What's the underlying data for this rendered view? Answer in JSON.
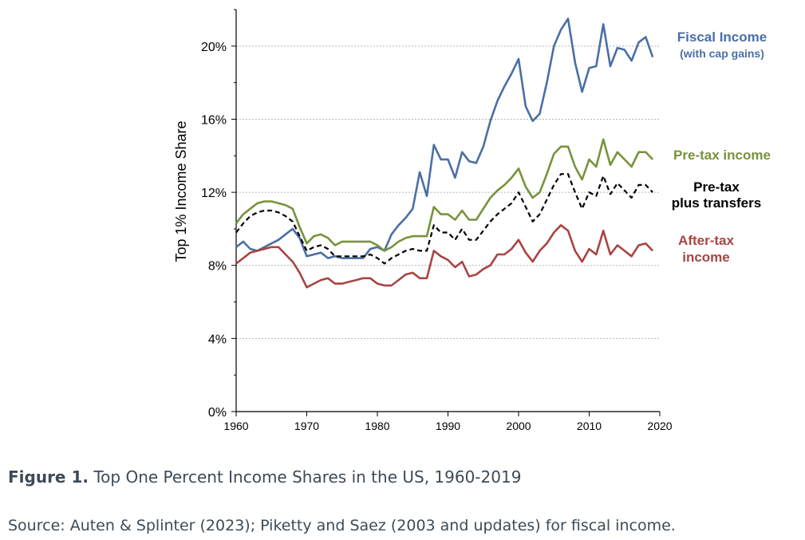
{
  "figure": {
    "label": "Figure 1.",
    "caption": "Top One Percent Income Shares in the US, 1960-2019",
    "source": "Source: Auten & Splinter (2023); Piketty and Saez (2003 and updates) for fiscal income."
  },
  "chart_data": {
    "type": "line",
    "title": "",
    "xlabel": "",
    "ylabel": "Top 1% Income Share",
    "xlim": [
      1960,
      2020
    ],
    "ylim": [
      0,
      22
    ],
    "x_ticks": [
      "1960",
      "1970",
      "1980",
      "1990",
      "2000",
      "2010",
      "2020"
    ],
    "y_ticks": [
      "0%",
      "4%",
      "8%",
      "12%",
      "16%",
      "20%"
    ],
    "grid": "horizontal dotted",
    "x": [
      1960,
      1961,
      1962,
      1963,
      1964,
      1965,
      1966,
      1967,
      1968,
      1969,
      1970,
      1971,
      1972,
      1973,
      1974,
      1975,
      1976,
      1977,
      1978,
      1979,
      1980,
      1981,
      1982,
      1983,
      1984,
      1985,
      1986,
      1987,
      1988,
      1989,
      1990,
      1991,
      1992,
      1993,
      1994,
      1995,
      1996,
      1997,
      1998,
      1999,
      2000,
      2001,
      2002,
      2003,
      2004,
      2005,
      2006,
      2007,
      2008,
      2009,
      2010,
      2011,
      2012,
      2013,
      2014,
      2015,
      2016,
      2017,
      2018,
      2019
    ],
    "series": [
      {
        "name": "Fiscal Income",
        "name_line2": "(with cap gains)",
        "color": "#4a6fa5",
        "style": "solid",
        "values": [
          9.0,
          9.3,
          8.9,
          8.8,
          9.0,
          9.2,
          9.4,
          9.7,
          10.0,
          9.5,
          8.5,
          8.6,
          8.7,
          8.4,
          8.5,
          8.4,
          8.4,
          8.4,
          8.4,
          8.9,
          9.0,
          8.8,
          9.7,
          10.2,
          10.6,
          11.1,
          13.1,
          11.8,
          14.6,
          13.8,
          13.8,
          12.8,
          14.2,
          13.7,
          13.6,
          14.5,
          15.9,
          17.0,
          17.8,
          18.5,
          19.3,
          16.7,
          15.9,
          16.3,
          18.0,
          20.0,
          20.9,
          21.5,
          19.1,
          17.5,
          18.8,
          18.9,
          21.2,
          18.9,
          19.9,
          19.8,
          19.2,
          20.2,
          20.5,
          19.4
        ]
      },
      {
        "name": "Pre-tax income",
        "color": "#77933c",
        "style": "solid",
        "values": [
          10.3,
          10.8,
          11.1,
          11.4,
          11.5,
          11.5,
          11.4,
          11.3,
          11.1,
          10.1,
          9.2,
          9.6,
          9.7,
          9.5,
          9.1,
          9.3,
          9.3,
          9.3,
          9.3,
          9.3,
          9.1,
          8.8,
          9.0,
          9.3,
          9.5,
          9.6,
          9.6,
          9.6,
          11.2,
          10.8,
          10.8,
          10.5,
          11.0,
          10.5,
          10.5,
          11.1,
          11.7,
          12.1,
          12.4,
          12.8,
          13.3,
          12.3,
          11.7,
          12.0,
          13.0,
          14.1,
          14.5,
          14.5,
          13.4,
          12.7,
          13.8,
          13.4,
          14.9,
          13.5,
          14.2,
          13.8,
          13.4,
          14.2,
          14.2,
          13.8
        ]
      },
      {
        "name": "Pre-tax",
        "name_line2": "plus transfers",
        "color": "#000000",
        "style": "dashed",
        "values": [
          9.8,
          10.3,
          10.7,
          10.9,
          11.0,
          11.0,
          10.9,
          10.7,
          10.4,
          9.6,
          8.8,
          9.0,
          9.1,
          8.9,
          8.5,
          8.5,
          8.5,
          8.5,
          8.5,
          8.6,
          8.4,
          8.1,
          8.4,
          8.6,
          8.8,
          8.9,
          8.8,
          8.8,
          10.2,
          9.8,
          9.8,
          9.4,
          10.0,
          9.4,
          9.4,
          9.9,
          10.4,
          10.8,
          11.1,
          11.4,
          12.0,
          11.2,
          10.4,
          10.8,
          11.6,
          12.4,
          13.0,
          13.0,
          12.0,
          11.1,
          12.0,
          11.8,
          12.9,
          11.9,
          12.5,
          12.1,
          11.7,
          12.4,
          12.4,
          12.0
        ]
      },
      {
        "name": "After-tax",
        "name_line2": "income",
        "color": "#a94442",
        "style": "solid",
        "values": [
          8.1,
          8.4,
          8.7,
          8.8,
          8.9,
          9.0,
          9.0,
          8.6,
          8.2,
          7.6,
          6.8,
          7.0,
          7.2,
          7.3,
          7.0,
          7.0,
          7.1,
          7.2,
          7.3,
          7.3,
          7.0,
          6.9,
          6.9,
          7.2,
          7.5,
          7.6,
          7.3,
          7.3,
          8.8,
          8.5,
          8.3,
          7.9,
          8.2,
          7.4,
          7.5,
          7.8,
          8.0,
          8.6,
          8.6,
          8.9,
          9.4,
          8.7,
          8.2,
          8.8,
          9.2,
          9.8,
          10.2,
          9.9,
          8.8,
          8.2,
          8.9,
          8.6,
          9.9,
          8.6,
          9.1,
          8.8,
          8.5,
          9.1,
          9.2,
          8.8
        ]
      }
    ]
  }
}
